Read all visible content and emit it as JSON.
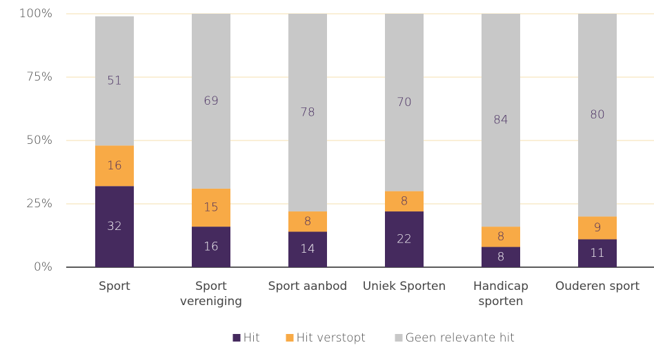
{
  "chart_data": {
    "type": "stacked_bar",
    "categories": [
      "Sport",
      "Sport\nvereniging",
      "Sport aanbod",
      "Uniek Sporten",
      "Handicap\nsporten",
      "Ouderen sport"
    ],
    "series": [
      {
        "name": "Hit",
        "color": "#452a5e",
        "values": [
          32,
          16,
          14,
          22,
          8,
          11
        ]
      },
      {
        "name": "Hit verstopt",
        "color": "#f8aa46",
        "values": [
          16,
          15,
          8,
          8,
          8,
          9
        ]
      },
      {
        "name": "Geen relevante hit",
        "color": "#c8c8c8",
        "values": [
          51,
          69,
          78,
          70,
          84,
          80
        ]
      }
    ],
    "ylim": [
      0,
      100
    ],
    "yticks": [
      {
        "value": 0,
        "label": "0%"
      },
      {
        "value": 25,
        "label": "25%"
      },
      {
        "value": 50,
        "label": "50%"
      },
      {
        "value": 75,
        "label": "75%"
      },
      {
        "value": 100,
        "label": "100%"
      }
    ],
    "grid": true,
    "legend": "bottom"
  }
}
